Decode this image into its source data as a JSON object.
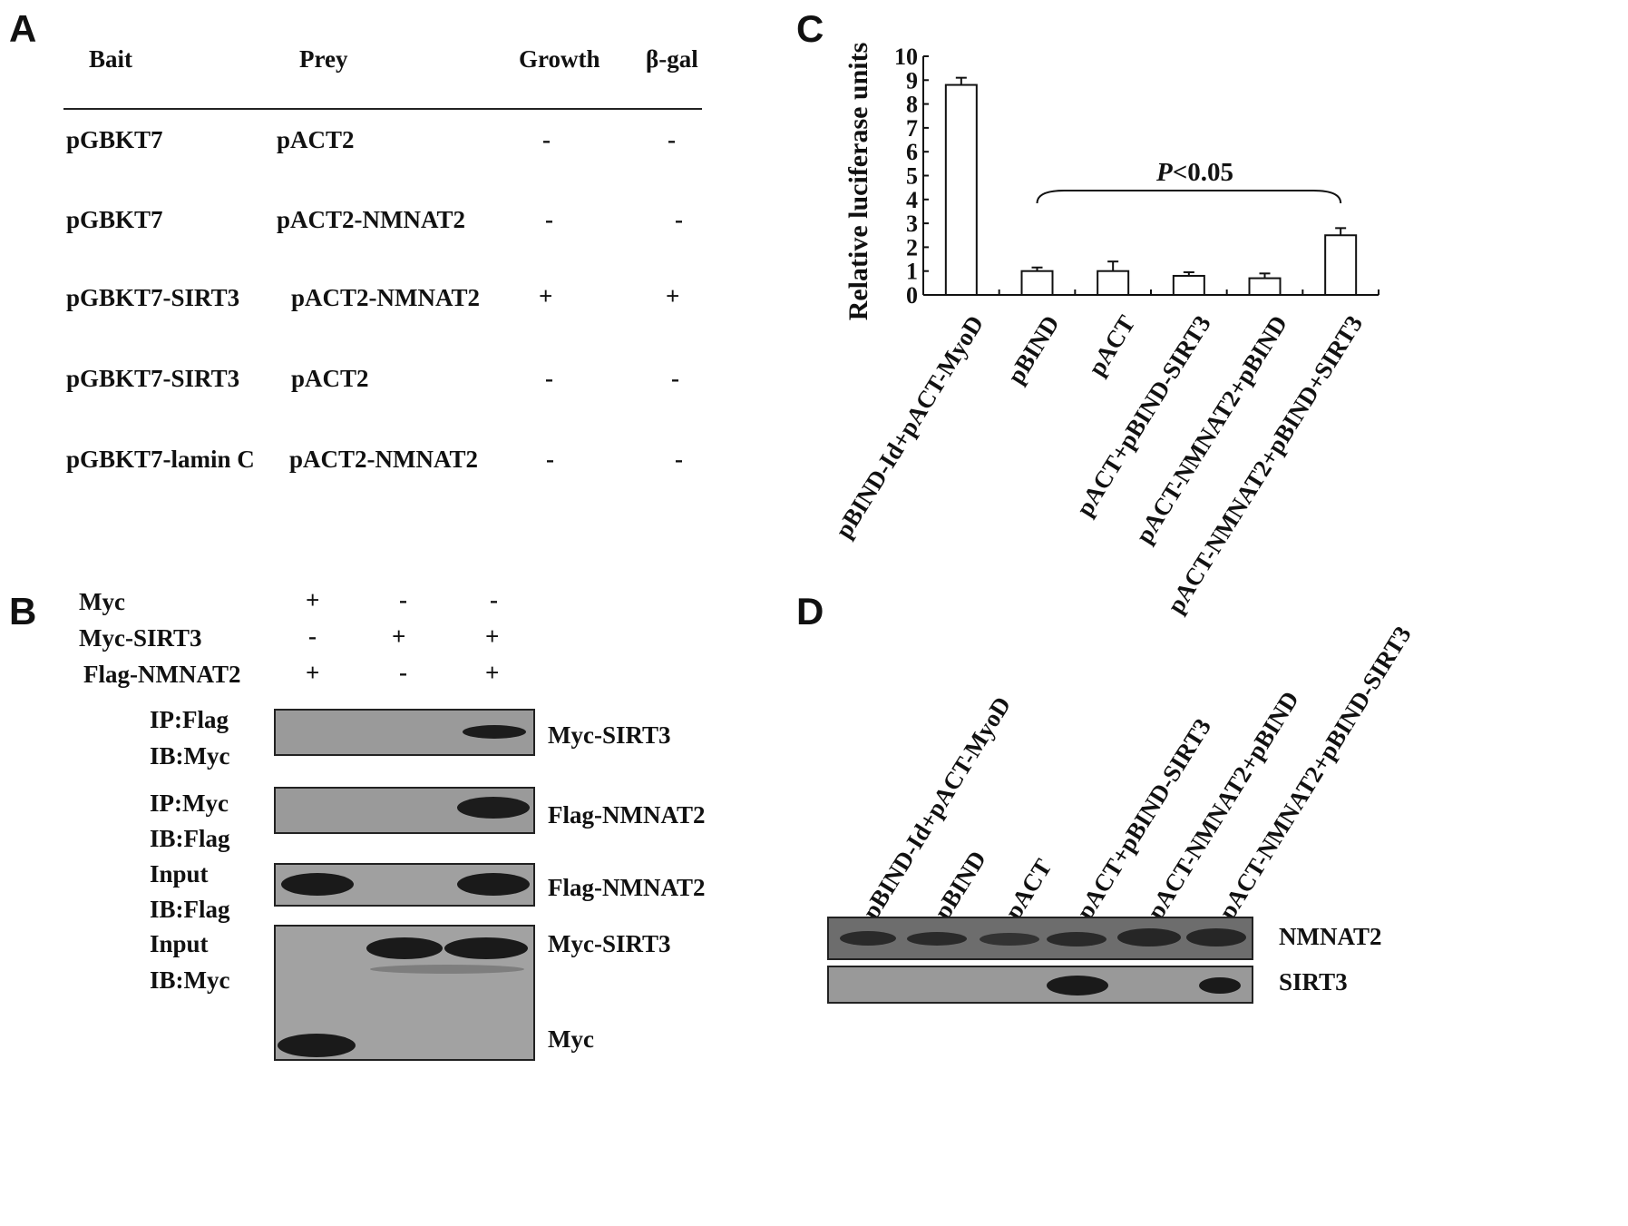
{
  "panel_a": {
    "letter": "A",
    "headers": [
      "Bait",
      "Prey",
      "Growth",
      "β-gal"
    ],
    "rows": [
      {
        "bait": "pGBKT7",
        "prey": "pACT2",
        "growth": "-",
        "bgal": "-"
      },
      {
        "bait": "pGBKT7",
        "prey": "pACT2-NMNAT2",
        "growth": "-",
        "bgal": "-"
      },
      {
        "bait": "pGBKT7-SIRT3",
        "prey": "pACT2-NMNAT2",
        "growth": "+",
        "bgal": "+"
      },
      {
        "bait": "pGBKT7-SIRT3",
        "prey": "pACT2",
        "growth": "-",
        "bgal": "-"
      },
      {
        "bait": "pGBKT7-lamin C",
        "prey": "pACT2-NMNAT2",
        "growth": "-",
        "bgal": "-"
      }
    ]
  },
  "panel_b": {
    "letter": "B",
    "conditions": [
      {
        "label": "Myc",
        "values": [
          "+",
          "-",
          "-"
        ]
      },
      {
        "label": "Myc-SIRT3",
        "values": [
          "-",
          "+",
          "+"
        ]
      },
      {
        "label": "Flag-NMNAT2",
        "values": [
          "+",
          "-",
          "+"
        ]
      }
    ],
    "blots": [
      {
        "left1": "IP:Flag",
        "left2": "IB:Myc",
        "right": "Myc-SIRT3"
      },
      {
        "left1": "IP:Myc",
        "left2": "IB:Flag",
        "right": "Flag-NMNAT2"
      },
      {
        "left1": "Input",
        "left2": "IB:Flag",
        "right": "Flag-NMNAT2"
      },
      {
        "left1": "Input",
        "left2": "IB:Myc",
        "right": "Myc-SIRT3",
        "right_lower": "Myc"
      }
    ]
  },
  "panel_c": {
    "letter": "C",
    "annotation": "<0.05",
    "annotation_italic": "P"
  },
  "panel_d": {
    "letter": "D",
    "lanes": [
      "pBIND-Id+pACT-MyoD",
      "pBIND",
      "pACT",
      "pACT+pBIND-SIRT3",
      "pACT-NMNAT2+pBIND",
      "pACT-NMNAT2+pBIND-SIRT3"
    ],
    "blot_labels": [
      "NMNAT2",
      "SIRT3"
    ]
  },
  "chart_data": {
    "type": "bar",
    "categories": [
      "pBIND-Id+pACT-MyoD",
      "pBIND",
      "pACT",
      "pACT+pBIND-SIRT3",
      "pACT-NMNAT2+pBIND",
      "pACT-NMNAT2+pBIND+SIRT3"
    ],
    "values": [
      8.8,
      1.0,
      1.0,
      0.8,
      0.7,
      2.5
    ],
    "errors": [
      0.3,
      0.15,
      0.4,
      0.15,
      0.2,
      0.3
    ],
    "ylabel": "Relative luciferase units",
    "xlabel": "",
    "ylim": [
      0,
      10
    ],
    "yticks": [
      "0",
      "1",
      "2",
      "3",
      "4",
      "5",
      "6",
      "7",
      "8",
      "9",
      "10"
    ],
    "grid": false
  },
  "colors": {
    "ink": "#111111",
    "blot_bg": "#8f8f8f",
    "blot_dark": "#6b6b6b",
    "band": "#1a1a1a"
  }
}
